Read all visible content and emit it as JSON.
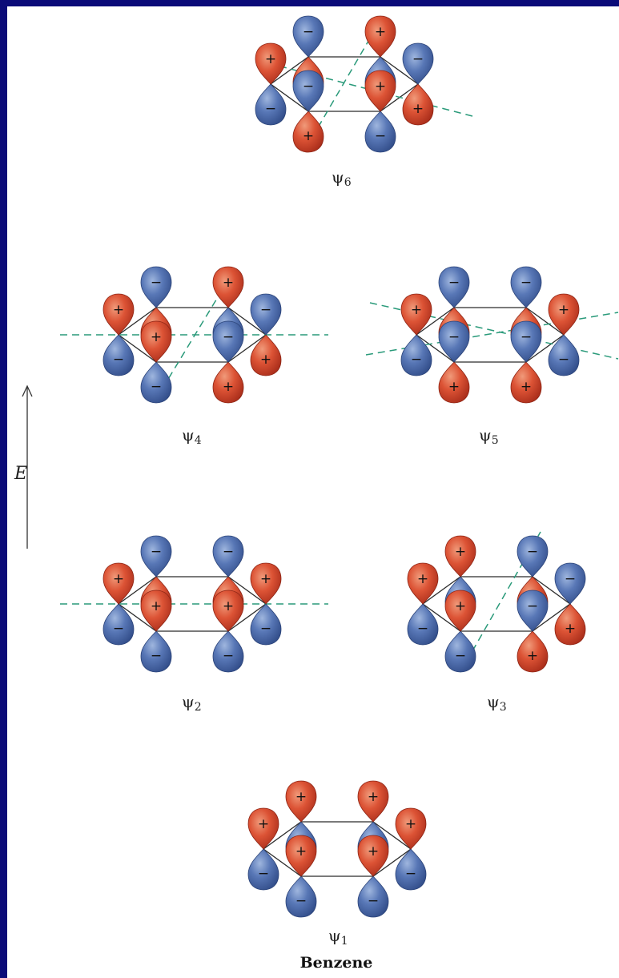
{
  "axis": {
    "energy_label": "E"
  },
  "orbitals": [
    {
      "id": "psi6",
      "label_main": "ψ",
      "label_sub": "6"
    },
    {
      "id": "psi4",
      "label_main": "ψ",
      "label_sub": "4"
    },
    {
      "id": "psi5",
      "label_main": "ψ",
      "label_sub": "5"
    },
    {
      "id": "psi2",
      "label_main": "ψ",
      "label_sub": "2"
    },
    {
      "id": "psi3",
      "label_main": "ψ",
      "label_sub": "3"
    },
    {
      "id": "psi1",
      "label_main": "ψ",
      "label_sub": "1"
    }
  ],
  "caption": "Benzene",
  "signs": {
    "plus": "+",
    "minus": "−"
  },
  "colors": {
    "positive_lobe": "#d2452a",
    "negative_lobe": "#4f6fae",
    "node_line": "#2a9a7a",
    "frame_border": "#0b0b78"
  }
}
